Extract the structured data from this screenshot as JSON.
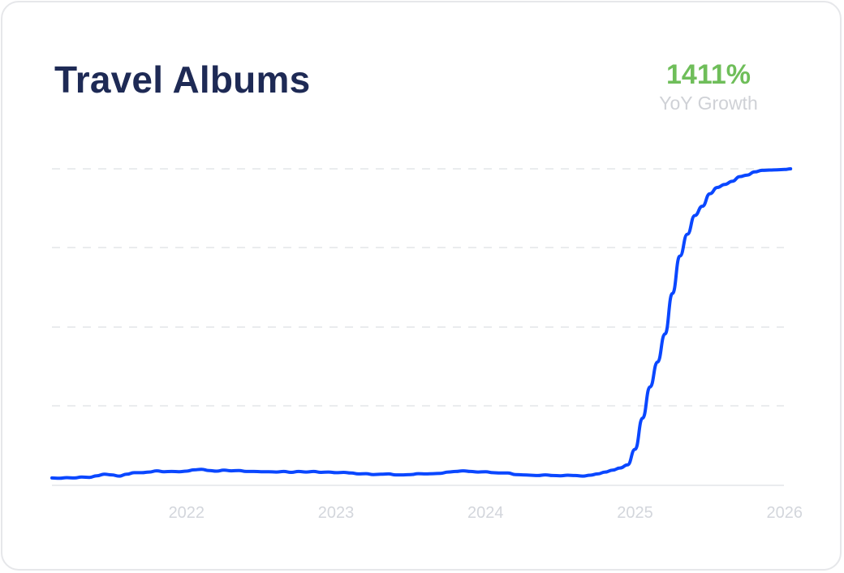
{
  "card": {
    "title": "Travel Albums",
    "growth_value": "1411%",
    "growth_label": "YoY Growth"
  },
  "colors": {
    "title": "#1e2a55",
    "growth": "#6fbe5a",
    "line": "#0a47ff",
    "grid": "#e3e5e9",
    "ticks": "#d3d6dc"
  },
  "chart_data": {
    "type": "line",
    "title": "Travel Albums",
    "xlabel": "",
    "ylabel": "",
    "x_ticks": [
      "2022",
      "2023",
      "2024",
      "2025",
      "2026"
    ],
    "xlim": [
      2021.1,
      2026.05
    ],
    "ylim": [
      0,
      100
    ],
    "grid": "horizontal-dashed",
    "series": [
      {
        "x": [
          2021.1,
          2021.15,
          2021.2,
          2021.25,
          2021.3,
          2021.35,
          2021.4,
          2021.45,
          2021.5,
          2021.55,
          2021.6,
          2021.65,
          2021.7,
          2021.75,
          2021.8,
          2021.85,
          2021.9,
          2021.95,
          2022.0,
          2022.05,
          2022.1,
          2022.15,
          2022.2,
          2022.25,
          2022.3,
          2022.35,
          2022.4,
          2022.45,
          2022.5,
          2022.55,
          2022.6,
          2022.65,
          2022.7,
          2022.75,
          2022.8,
          2022.85,
          2022.9,
          2022.95,
          2023.0,
          2023.05,
          2023.1,
          2023.15,
          2023.2,
          2023.25,
          2023.3,
          2023.35,
          2023.4,
          2023.45,
          2023.5,
          2023.55,
          2023.6,
          2023.65,
          2023.7,
          2023.75,
          2023.8,
          2023.85,
          2023.9,
          2023.95,
          2024.0,
          2024.05,
          2024.1,
          2024.15,
          2024.2,
          2024.25,
          2024.3,
          2024.35,
          2024.4,
          2024.45,
          2024.5,
          2024.55,
          2024.6,
          2024.65,
          2024.7,
          2024.75,
          2024.8,
          2024.85,
          2024.9,
          2024.95,
          2025.0,
          2025.05,
          2025.1,
          2025.15,
          2025.2,
          2025.25,
          2025.3,
          2025.35,
          2025.4,
          2025.45,
          2025.5,
          2025.55,
          2025.6,
          2025.65,
          2025.7,
          2025.75,
          2025.8,
          2025.85,
          2025.9,
          2025.95,
          2026.0,
          2026.04
        ],
        "y": [
          0.8,
          0.7,
          0.9,
          0.8,
          1.1,
          1.0,
          1.5,
          2.0,
          1.8,
          1.4,
          2.0,
          2.5,
          2.5,
          2.7,
          3.1,
          2.8,
          2.9,
          2.8,
          3.0,
          3.4,
          3.6,
          3.2,
          3.0,
          3.3,
          3.1,
          3.2,
          2.9,
          2.9,
          2.8,
          2.8,
          2.7,
          2.9,
          2.6,
          2.9,
          2.7,
          2.9,
          2.6,
          2.7,
          2.5,
          2.6,
          2.4,
          2.1,
          2.2,
          1.9,
          2.0,
          2.1,
          1.8,
          1.8,
          1.9,
          2.2,
          2.1,
          2.2,
          2.3,
          2.7,
          2.9,
          3.1,
          2.9,
          2.7,
          2.8,
          2.5,
          2.4,
          2.4,
          1.9,
          1.8,
          1.7,
          1.6,
          1.8,
          1.6,
          1.5,
          1.7,
          1.6,
          1.4,
          1.7,
          2.1,
          2.7,
          3.3,
          4.0,
          5.0,
          10.0,
          20.0,
          30.0,
          38.0,
          47.0,
          60.0,
          72.0,
          79.0,
          85.0,
          88.0,
          92.0,
          94.0,
          95.0,
          96.0,
          97.5,
          98.0,
          99.0,
          99.5,
          99.6,
          99.7,
          99.8,
          100.0
        ]
      }
    ]
  }
}
